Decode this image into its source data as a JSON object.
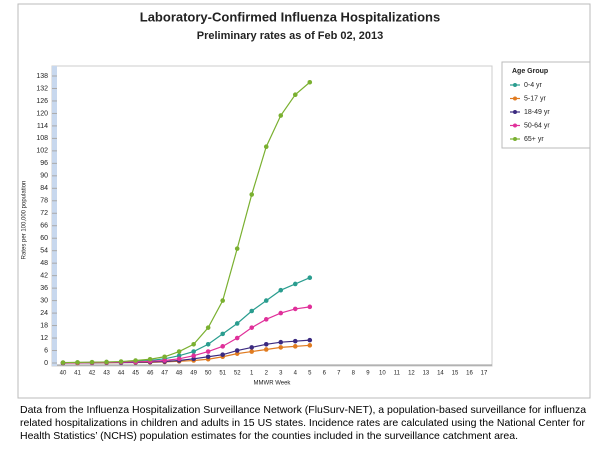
{
  "chart_data": {
    "type": "line",
    "title": "Laboratory-Confirmed Influenza Hospitalizations",
    "subtitle": "Preliminary rates as of Feb 02, 2013",
    "y_label": "Rates per 100,000 population",
    "x_label": "MMWR Week",
    "legend_title": "Age Group",
    "legend_position": "right",
    "categories": [
      "40",
      "41",
      "42",
      "43",
      "44",
      "45",
      "46",
      "47",
      "48",
      "49",
      "50",
      "51",
      "52",
      "1",
      "2",
      "3",
      "4",
      "5",
      "6",
      "7",
      "8",
      "9",
      "10",
      "11",
      "12",
      "13",
      "14",
      "15",
      "16",
      "17"
    ],
    "series": [
      {
        "name": "0-4 yr",
        "color": "#2a9d8f",
        "values": [
          0.1,
          0.2,
          0.3,
          0.4,
          0.5,
          0.8,
          1.2,
          2,
          3.5,
          5.5,
          9,
          14,
          19,
          25,
          30,
          35,
          38,
          41,
          null,
          null,
          null,
          null,
          null,
          null,
          null,
          null,
          null,
          null,
          null,
          null
        ]
      },
      {
        "name": "5-17 yr",
        "color": "#e07b20",
        "values": [
          0,
          0,
          0.1,
          0.1,
          0.2,
          0.2,
          0.3,
          0.5,
          0.8,
          1.2,
          1.8,
          3,
          4.5,
          5.5,
          6.5,
          7.5,
          8,
          8.5,
          null,
          null,
          null,
          null,
          null,
          null,
          null,
          null,
          null,
          null,
          null,
          null
        ]
      },
      {
        "name": "18-49 yr",
        "color": "#3b2a80",
        "values": [
          0,
          0.1,
          0.1,
          0.2,
          0.2,
          0.3,
          0.5,
          0.7,
          1.2,
          2,
          3,
          4,
          6,
          7.5,
          9,
          10,
          10.5,
          11,
          null,
          null,
          null,
          null,
          null,
          null,
          null,
          null,
          null,
          null,
          null,
          null
        ]
      },
      {
        "name": "50-64 yr",
        "color": "#e0309a",
        "values": [
          0.1,
          0.1,
          0.2,
          0.3,
          0.4,
          0.5,
          0.8,
          1.2,
          2,
          3.5,
          5.5,
          8,
          12,
          17,
          21,
          24,
          26,
          27,
          null,
          null,
          null,
          null,
          null,
          null,
          null,
          null,
          null,
          null,
          null,
          null
        ]
      },
      {
        "name": "65+ yr",
        "color": "#7ab030",
        "values": [
          0.2,
          0.3,
          0.4,
          0.5,
          0.7,
          1.2,
          1.8,
          3,
          5.5,
          9,
          17,
          30,
          55,
          81,
          104,
          119,
          129,
          135,
          null,
          null,
          null,
          null,
          null,
          null,
          null,
          null,
          null,
          null,
          null,
          null
        ]
      }
    ],
    "ylim": [
      0,
      138
    ],
    "yticks": [
      0,
      6,
      12,
      18,
      24,
      30,
      36,
      42,
      48,
      54,
      60,
      66,
      72,
      78,
      84,
      90,
      96,
      102,
      108,
      114,
      120,
      126,
      132,
      138
    ],
    "grid": false
  },
  "caption": "Data from the Influenza Hospitalization Surveillance Network (FluSurv-NET), a population-based surveillance for influenza related hospitalizations in children and adults in 15 US states.  Incidence rates are calculated using the National Center for Health Statistics’ (NCHS) population estimates for the counties included in the surveillance catchment area."
}
